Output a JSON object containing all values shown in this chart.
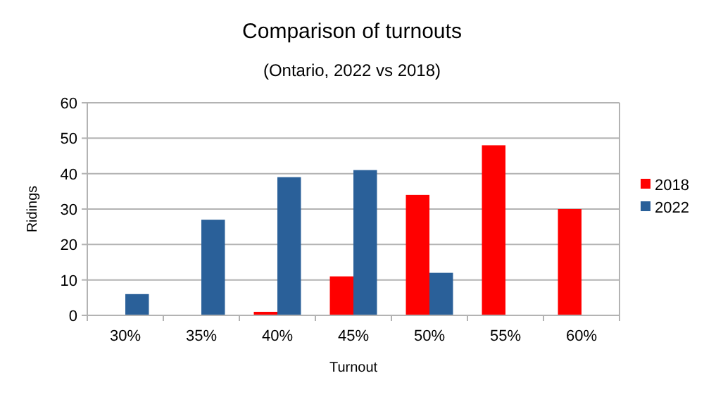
{
  "chart_data": {
    "type": "bar",
    "title": "Comparison of turnouts",
    "subtitle": "(Ontario, 2022 vs 2018)",
    "xlabel": "Turnout",
    "ylabel": "Ridings",
    "categories": [
      "30%",
      "35%",
      "40%",
      "45%",
      "50%",
      "55%",
      "60%"
    ],
    "series": [
      {
        "name": "2018",
        "color": "#ff0000",
        "values": [
          0,
          0,
          1,
          11,
          34,
          48,
          30
        ]
      },
      {
        "name": "2022",
        "color": "#2a6099",
        "values": [
          6,
          27,
          39,
          41,
          12,
          0,
          0
        ]
      }
    ],
    "ylim": [
      0,
      60
    ],
    "yticks": [
      0,
      10,
      20,
      30,
      40,
      50,
      60
    ],
    "grid": "y",
    "legend": "right"
  }
}
